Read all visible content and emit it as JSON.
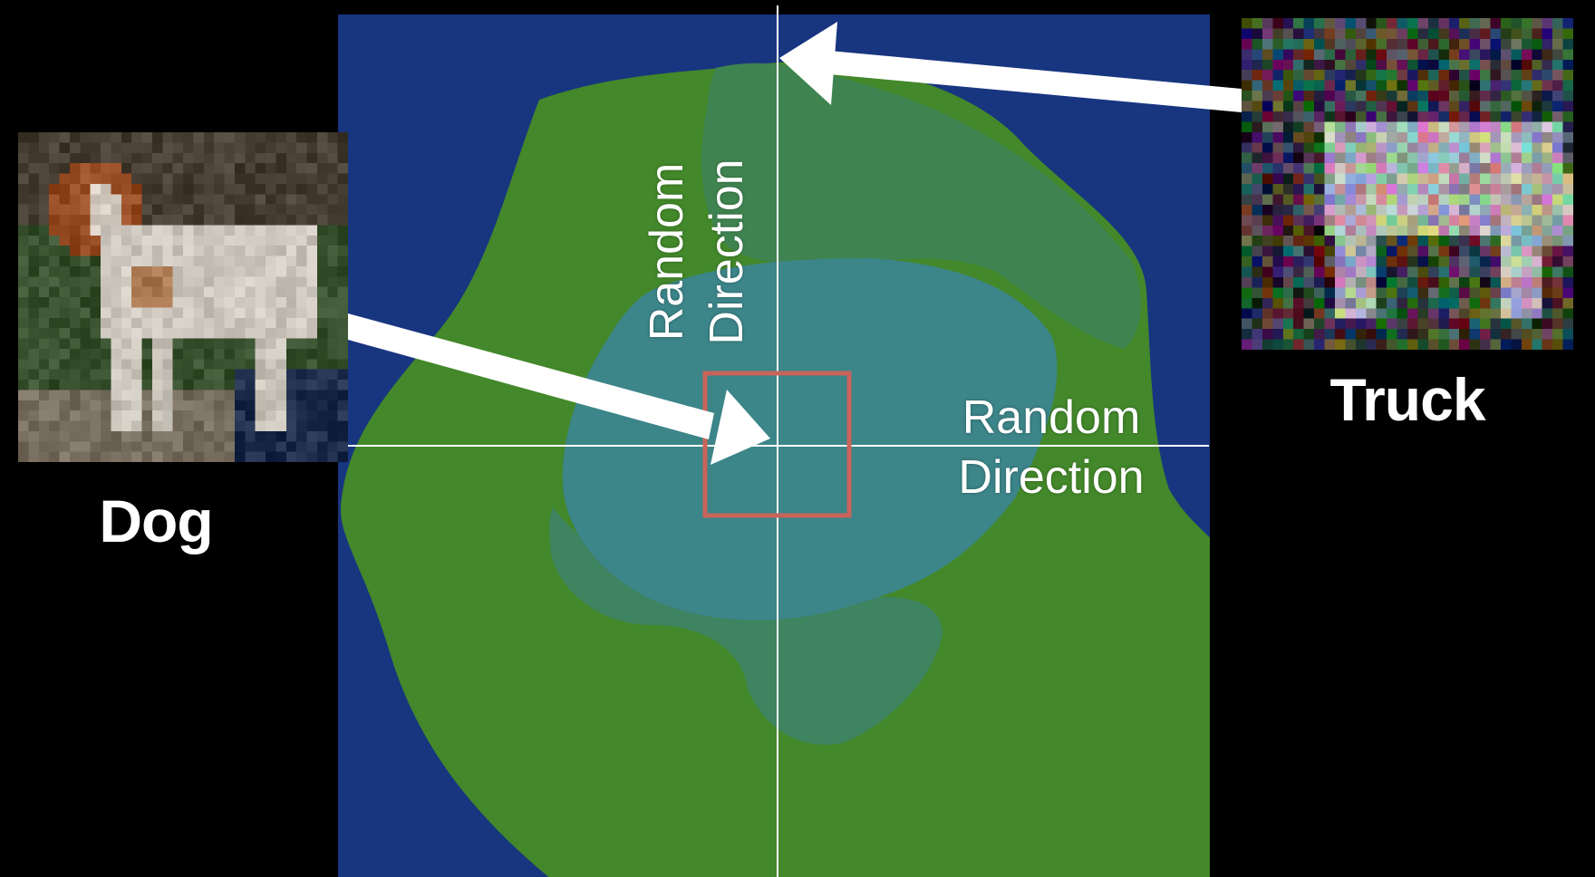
{
  "colors": {
    "background": "#000000",
    "loss_outer": "#183580",
    "loss_mid": "#43882a",
    "loss_inner": "#3f8450",
    "loss_center": "#3c8589",
    "axis": "#ffffff",
    "box": "#c9645a",
    "arrow": "#ffffff"
  },
  "images": {
    "dog": {
      "caption": "Dog",
      "icon": "dog-photo"
    },
    "truck": {
      "caption": "Truck",
      "icon": "noisy-truck-photo"
    }
  },
  "axes": {
    "horizontal_label": [
      "Random",
      "Direction"
    ],
    "vertical_label": [
      "Random",
      "Direction"
    ]
  }
}
